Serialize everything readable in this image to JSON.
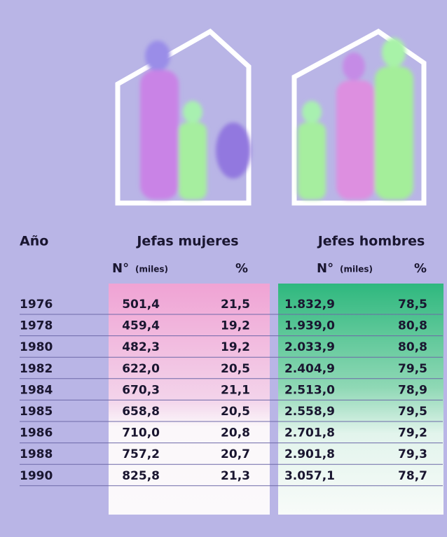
{
  "table": {
    "header": {
      "year": "Año",
      "women": "Jefas mujeres",
      "men": "Jefes hombres"
    },
    "subheader": {
      "number": "N°",
      "unit": "(miles)",
      "percent": "%"
    },
    "rows": [
      [
        "1976",
        "501,4",
        "21,5",
        "1.832,9",
        "78,5"
      ],
      [
        "1978",
        "459,4",
        "19,2",
        "1.939,0",
        "80,8"
      ],
      [
        "1980",
        "482,3",
        "19,2",
        "2.033,9",
        "80,8"
      ],
      [
        "1982",
        "622,0",
        "20,5",
        "2.404,9",
        "79,5"
      ],
      [
        "1984",
        "670,3",
        "21,1",
        "2.513,0",
        "78,9"
      ],
      [
        "1985",
        "658,8",
        "20,5",
        "2.558,9",
        "79,5"
      ],
      [
        "1986",
        "710,0",
        "20,8",
        "2.701,8",
        "79,2"
      ],
      [
        "1988",
        "757,2",
        "20,7",
        "2.901,8",
        "79,3"
      ],
      [
        "1990",
        "825,8",
        "21,3",
        "3.057,1",
        "78,7"
      ]
    ]
  }
}
